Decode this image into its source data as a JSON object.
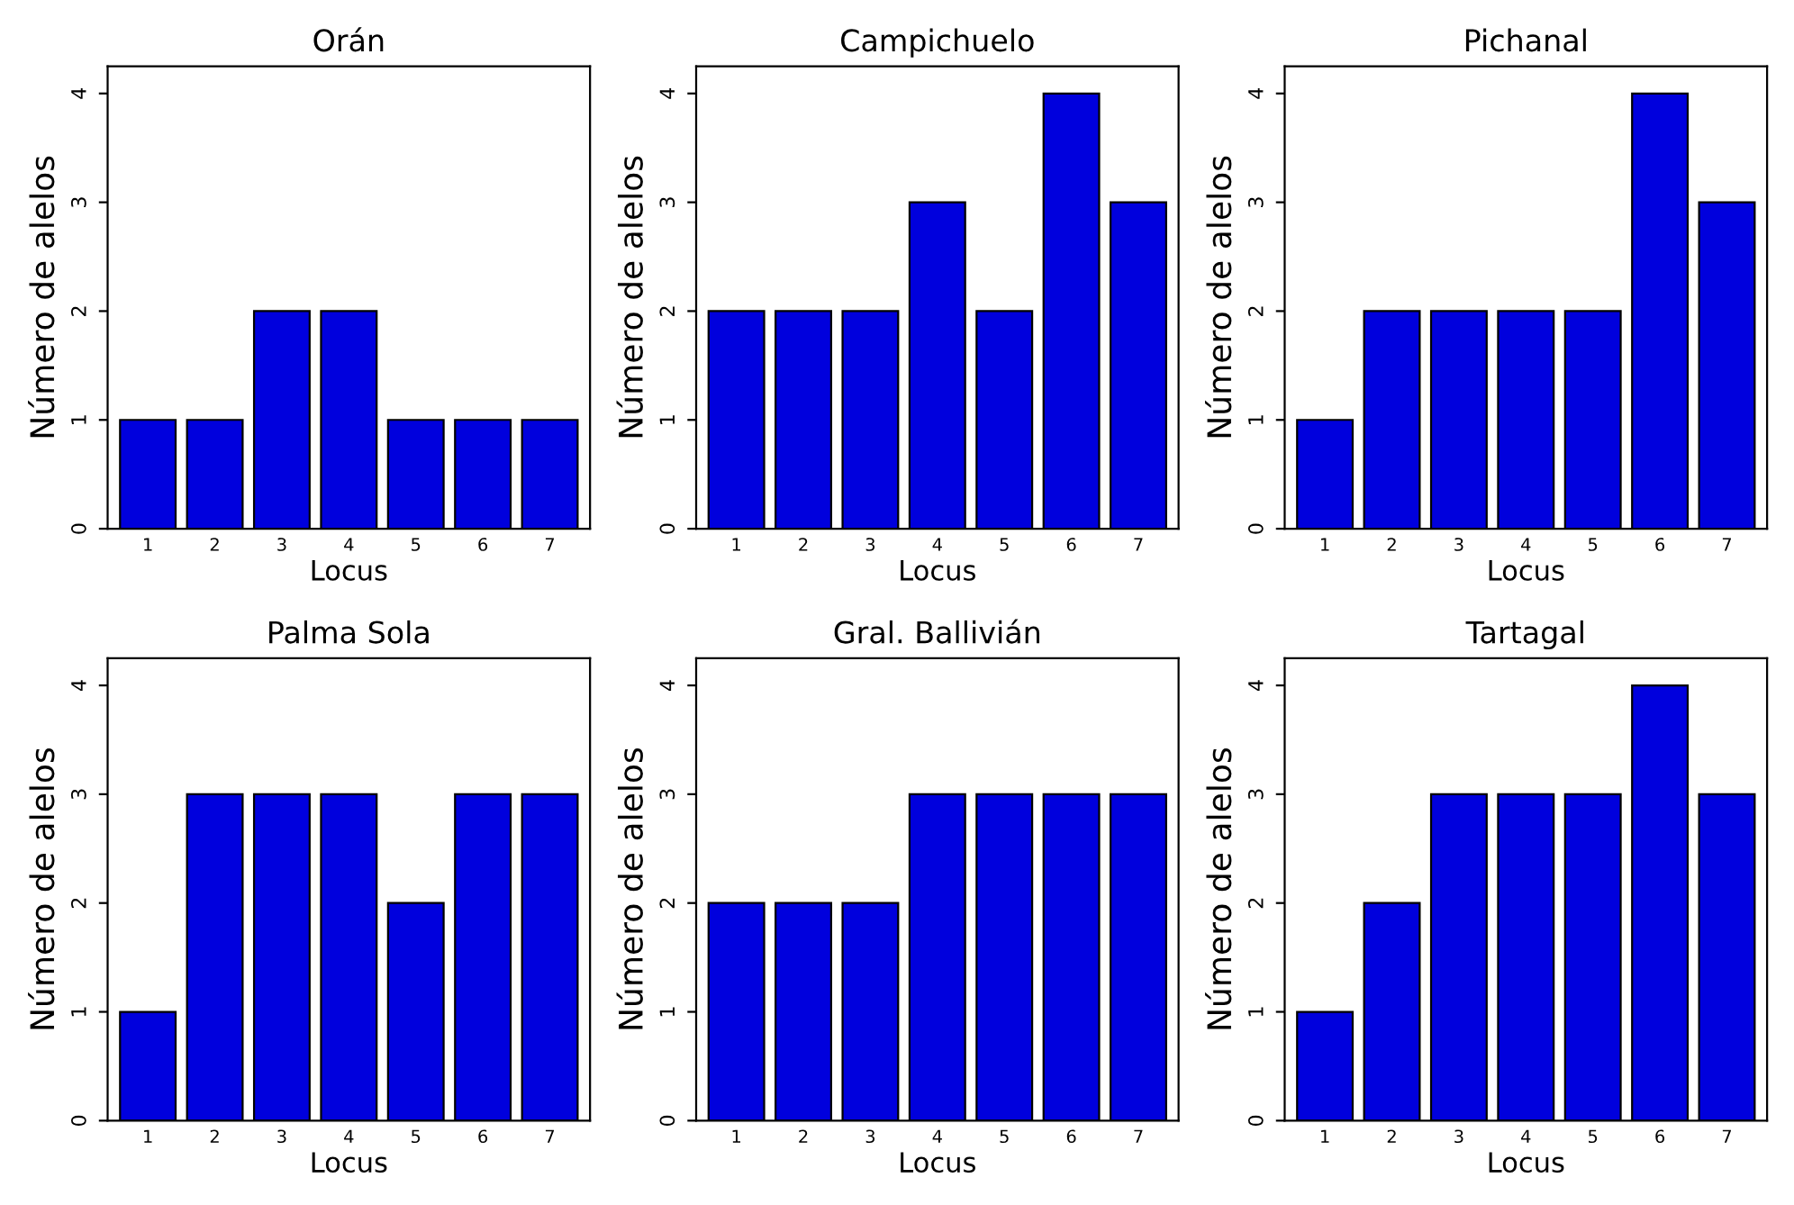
{
  "chart_data": [
    {
      "type": "bar",
      "title": "Orán",
      "xlabel": "Locus",
      "ylabel": "Número de alelos",
      "categories": [
        "1",
        "2",
        "3",
        "4",
        "5",
        "6",
        "7"
      ],
      "values": [
        1,
        1,
        2,
        2,
        1,
        1,
        1
      ],
      "color": "#0000dd",
      "ylim": [
        0,
        4.25
      ],
      "yticks": [
        0,
        1,
        2,
        3,
        4
      ]
    },
    {
      "type": "bar",
      "title": "Campichuelo",
      "xlabel": "Locus",
      "ylabel": "Número de alelos",
      "categories": [
        "1",
        "2",
        "3",
        "4",
        "5",
        "6",
        "7"
      ],
      "values": [
        2,
        2,
        2,
        3,
        2,
        4,
        3
      ],
      "color": "#0000dd",
      "ylim": [
        0,
        4.25
      ],
      "yticks": [
        0,
        1,
        2,
        3,
        4
      ]
    },
    {
      "type": "bar",
      "title": "Pichanal",
      "xlabel": "Locus",
      "ylabel": "Número de alelos",
      "categories": [
        "1",
        "2",
        "3",
        "4",
        "5",
        "6",
        "7"
      ],
      "values": [
        1,
        2,
        2,
        2,
        2,
        4,
        3
      ],
      "color": "#0000dd",
      "ylim": [
        0,
        4.25
      ],
      "yticks": [
        0,
        1,
        2,
        3,
        4
      ]
    },
    {
      "type": "bar",
      "title": "Palma Sola",
      "xlabel": "Locus",
      "ylabel": "Número de alelos",
      "categories": [
        "1",
        "2",
        "3",
        "4",
        "5",
        "6",
        "7"
      ],
      "values": [
        1,
        3,
        3,
        3,
        2,
        3,
        3
      ],
      "color": "#0000dd",
      "ylim": [
        0,
        4.25
      ],
      "yticks": [
        0,
        1,
        2,
        3,
        4
      ]
    },
    {
      "type": "bar",
      "title": "Gral. Ballivián",
      "xlabel": "Locus",
      "ylabel": "Número de alelos",
      "categories": [
        "1",
        "2",
        "3",
        "4",
        "5",
        "6",
        "7"
      ],
      "values": [
        2,
        2,
        2,
        3,
        3,
        3,
        3
      ],
      "color": "#0000dd",
      "ylim": [
        0,
        4.25
      ],
      "yticks": [
        0,
        1,
        2,
        3,
        4
      ]
    },
    {
      "type": "bar",
      "title": "Tartagal",
      "xlabel": "Locus",
      "ylabel": "Número de alelos",
      "categories": [
        "1",
        "2",
        "3",
        "4",
        "5",
        "6",
        "7"
      ],
      "values": [
        1,
        2,
        3,
        3,
        3,
        4,
        3
      ],
      "color": "#0000dd",
      "ylim": [
        0,
        4.25
      ],
      "yticks": [
        0,
        1,
        2,
        3,
        4
      ]
    }
  ]
}
